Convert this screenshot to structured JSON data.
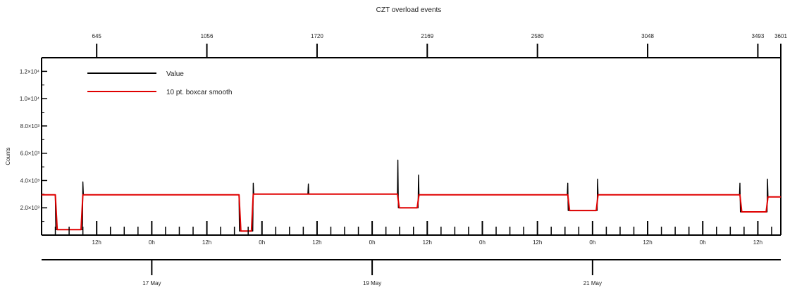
{
  "chart_data": {
    "type": "line",
    "title": "CZT overload events",
    "ylabel": "Counts",
    "ylim": [
      0,
      13000
    ],
    "xlim_hours": [
      0,
      161
    ],
    "grid": false,
    "legend_placement": "top-left",
    "y_ticks": [
      2000,
      4000,
      6000,
      8000,
      10000,
      12000
    ],
    "y_tick_labels": [
      "2.0×10³",
      "4.0×10³",
      "6.0×10³",
      "8.0×10³",
      "1.0×10⁴",
      "1.2×10⁴"
    ],
    "top_axis_ticks": [
      {
        "hour": 12,
        "label": "645"
      },
      {
        "hour": 36,
        "label": "1056"
      },
      {
        "hour": 60,
        "label": "1720"
      },
      {
        "hour": 84,
        "label": "2169"
      },
      {
        "hour": 108,
        "label": "2580"
      },
      {
        "hour": 132,
        "label": "3048"
      },
      {
        "hour": 156,
        "label": "3493"
      },
      {
        "hour": 161,
        "label": "3601"
      }
    ],
    "hour_axis_ticks": [
      {
        "hour": 12,
        "label": "12h"
      },
      {
        "hour": 24,
        "label": "0h"
      },
      {
        "hour": 36,
        "label": "12h"
      },
      {
        "hour": 48,
        "label": "0h"
      },
      {
        "hour": 60,
        "label": "12h"
      },
      {
        "hour": 72,
        "label": "0h"
      },
      {
        "hour": 84,
        "label": "12h"
      },
      {
        "hour": 96,
        "label": "0h"
      },
      {
        "hour": 108,
        "label": "12h"
      },
      {
        "hour": 120,
        "label": "0h"
      },
      {
        "hour": 132,
        "label": "12h"
      },
      {
        "hour": 144,
        "label": "0h"
      },
      {
        "hour": 156,
        "label": "12h"
      }
    ],
    "date_axis_ticks": [
      {
        "hour": 24,
        "label": "17 May"
      },
      {
        "hour": 72,
        "label": "19 May"
      },
      {
        "hour": 120,
        "label": "21 May"
      }
    ],
    "series": [
      {
        "name": "Value",
        "color": "#000000",
        "points": [
          [
            0,
            2950
          ],
          [
            3,
            2950
          ],
          [
            3.1,
            400
          ],
          [
            8.9,
            400
          ],
          [
            9,
            3900
          ],
          [
            9.1,
            2950
          ],
          [
            43,
            2950
          ],
          [
            43.1,
            300
          ],
          [
            46,
            300
          ],
          [
            46.1,
            3800
          ],
          [
            46.2,
            3000
          ],
          [
            58,
            3000
          ],
          [
            58.1,
            3750
          ],
          [
            58.2,
            3000
          ],
          [
            77.5,
            3000
          ],
          [
            77.6,
            5500
          ],
          [
            77.7,
            2000
          ],
          [
            82,
            2000
          ],
          [
            82.1,
            4400
          ],
          [
            82.2,
            2950
          ],
          [
            114.5,
            2950
          ],
          [
            114.6,
            3800
          ],
          [
            114.7,
            1800
          ],
          [
            121,
            1800
          ],
          [
            121.1,
            4100
          ],
          [
            121.2,
            2950
          ],
          [
            152,
            2950
          ],
          [
            152.1,
            3800
          ],
          [
            152.2,
            1700
          ],
          [
            158,
            1700
          ],
          [
            158.1,
            4100
          ],
          [
            158.2,
            2800
          ],
          [
            161,
            2800
          ]
        ]
      },
      {
        "name": "10 pt. boxcar smooth",
        "color": "#e00000",
        "points": [
          [
            0,
            2950
          ],
          [
            3,
            2950
          ],
          [
            3.4,
            400
          ],
          [
            8.6,
            400
          ],
          [
            9,
            2950
          ],
          [
            43,
            2950
          ],
          [
            43.4,
            300
          ],
          [
            45.7,
            300
          ],
          [
            46.1,
            3000
          ],
          [
            77.5,
            3000
          ],
          [
            77.9,
            2000
          ],
          [
            81.8,
            2000
          ],
          [
            82.2,
            2950
          ],
          [
            114.6,
            2950
          ],
          [
            115,
            1800
          ],
          [
            120.8,
            1800
          ],
          [
            121.2,
            2950
          ],
          [
            152.1,
            2950
          ],
          [
            152.5,
            1700
          ],
          [
            157.8,
            1700
          ],
          [
            158.2,
            2800
          ],
          [
            161,
            2800
          ]
        ]
      }
    ]
  }
}
